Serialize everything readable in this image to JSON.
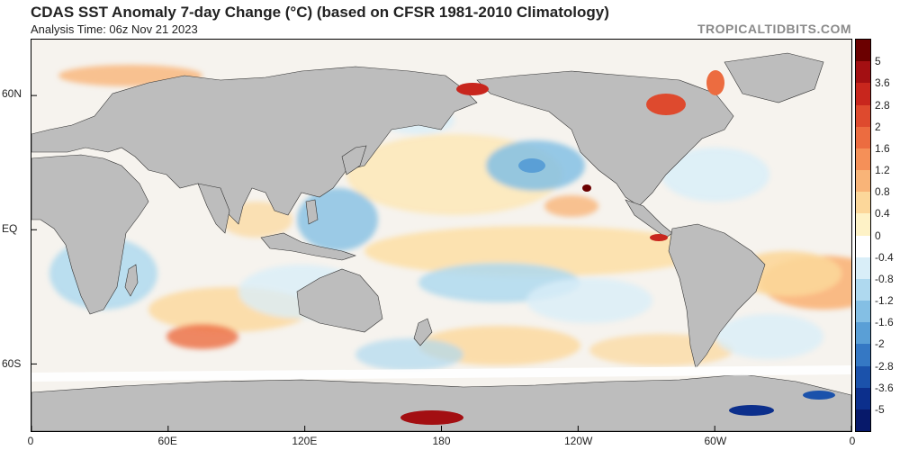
{
  "header": {
    "title": "CDAS SST Anomaly 7-day Change (°C) (based on CFSR 1981-2010 Climatology)",
    "analysis_time": "Analysis Time: 06z Nov 21 2023",
    "brand": "TROPICALTIDBITS.COM"
  },
  "map": {
    "projection": "equirectangular",
    "lon_center": 180,
    "lat_labels": [
      {
        "text": "60N",
        "lat": 60
      },
      {
        "text": "EQ",
        "lat": 0
      },
      {
        "text": "60S",
        "lat": -60
      }
    ],
    "lon_labels": [
      {
        "text": "0",
        "lon": 0
      },
      {
        "text": "60E",
        "lon": 60
      },
      {
        "text": "120E",
        "lon": 120
      },
      {
        "text": "180",
        "lon": 180
      },
      {
        "text": "120W",
        "lon": 240
      },
      {
        "text": "60W",
        "lon": 300
      },
      {
        "text": "0",
        "lon": 360
      }
    ],
    "land_color": "#bdbdbd",
    "ice_color": "#ffffff"
  },
  "colorbar": {
    "labels": [
      "5",
      "3.6",
      "2.8",
      "2",
      "1.6",
      "1.2",
      "0.8",
      "0.4",
      "0",
      "-0.4",
      "-0.8",
      "-1.2",
      "-1.6",
      "-2",
      "-2.8",
      "-3.6",
      "-5"
    ],
    "colors": [
      "#6b0000",
      "#a30f12",
      "#c8261d",
      "#de4a2e",
      "#ec6c40",
      "#f59058",
      "#f9b478",
      "#fcd79a",
      "#fef2c6",
      "#ffffff",
      "#d9eef8",
      "#afd9ef",
      "#84bfe4",
      "#5a9fd6",
      "#3578c4",
      "#1b52ab",
      "#0c2f8c",
      "#07196a"
    ]
  }
}
